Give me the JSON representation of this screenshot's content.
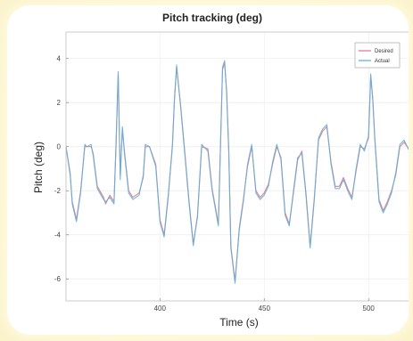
{
  "chart_data": {
    "type": "line",
    "title": "Pitch tracking (deg)",
    "xlabel": "Time (s)",
    "ylabel": "Pitch (deg)",
    "xlim": [
      355,
      520
    ],
    "ylim": [
      -7,
      5.2
    ],
    "xticks": [
      400,
      450,
      500
    ],
    "yticks": [
      -6,
      -4,
      -2,
      0,
      2,
      4
    ],
    "grid": true,
    "legend_position": "top-right",
    "series": [
      {
        "name": "Desired",
        "color": "#e8788a",
        "x": [
          355,
          357,
          358,
          360,
          362,
          364,
          365,
          367,
          368,
          370,
          373,
          374,
          376,
          378,
          379,
          380,
          381,
          382,
          383,
          385,
          387,
          390,
          392,
          393,
          395,
          398,
          400,
          402,
          404,
          406,
          407,
          408,
          410,
          412,
          414,
          416,
          418,
          420,
          423,
          425,
          428,
          430,
          431,
          432,
          433,
          434,
          436,
          438,
          440,
          442,
          444,
          446,
          448,
          450,
          452,
          454,
          456,
          458,
          460,
          462,
          464,
          466,
          468,
          470,
          472,
          474,
          476,
          478,
          480,
          482,
          484,
          486,
          488,
          490,
          492,
          494,
          496,
          498,
          500,
          501,
          502,
          503,
          505,
          507,
          509,
          511,
          513,
          515,
          517,
          520
        ],
        "y": [
          0,
          -1.3,
          -2.5,
          -3.3,
          -2.0,
          0,
          0,
          0,
          -0.3,
          -1.8,
          -2.3,
          -2.6,
          -2.2,
          -2.5,
          0,
          3.3,
          -1.3,
          0.8,
          -0.2,
          -2.0,
          -2.3,
          -2.1,
          -1.4,
          0,
          0,
          -0.8,
          -3.3,
          -4.0,
          -2.2,
          0,
          2.1,
          3.6,
          1.8,
          -0.3,
          -2.5,
          -4.4,
          -3.2,
          0,
          -0.1,
          -1.9,
          -3.5,
          3.5,
          3.8,
          2.5,
          -0.2,
          -4.5,
          -6.1,
          -3.7,
          -2.4,
          -0.9,
          0,
          -2.0,
          -2.3,
          -2.1,
          -1.7,
          -0.8,
          0,
          -0.5,
          -3.0,
          -3.5,
          -2.1,
          -0.6,
          -0.2,
          -2.1,
          -4.5,
          -2.3,
          0.3,
          0.7,
          0.9,
          -0.7,
          -1.8,
          -1.8,
          -1.4,
          -1.9,
          -2.3,
          -1.1,
          0,
          -0.1,
          0.4,
          3.2,
          2.2,
          0.4,
          -2.4,
          -2.9,
          -2.5,
          -2.0,
          -1.3,
          0,
          0.2,
          -0.2
        ]
      },
      {
        "name": "Actual",
        "color": "#5fb0d8",
        "x": [
          355,
          357,
          358,
          360,
          362,
          364,
          365,
          367,
          368,
          370,
          373,
          374,
          376,
          378,
          379,
          380,
          381,
          382,
          383,
          385,
          387,
          390,
          392,
          393,
          395,
          398,
          400,
          402,
          404,
          406,
          407,
          408,
          410,
          412,
          414,
          416,
          418,
          420,
          423,
          425,
          428,
          430,
          431,
          432,
          433,
          434,
          436,
          438,
          440,
          442,
          444,
          446,
          448,
          450,
          452,
          454,
          456,
          458,
          460,
          462,
          464,
          466,
          468,
          470,
          472,
          474,
          476,
          478,
          480,
          482,
          484,
          486,
          488,
          490,
          492,
          494,
          496,
          498,
          500,
          501,
          502,
          503,
          505,
          507,
          509,
          511,
          513,
          515,
          517,
          520
        ],
        "y": [
          0,
          -1.2,
          -2.6,
          -3.4,
          -2.1,
          0.1,
          0,
          0.1,
          -0.4,
          -1.9,
          -2.4,
          -2.5,
          -2.3,
          -2.6,
          0.2,
          3.4,
          -1.5,
          0.9,
          -0.3,
          -2.1,
          -2.4,
          -2.2,
          -1.3,
          0.1,
          0,
          -0.9,
          -3.4,
          -4.1,
          -2.3,
          0.1,
          2.2,
          3.7,
          1.7,
          -0.4,
          -2.6,
          -4.5,
          -3.1,
          0.1,
          -0.2,
          -2.0,
          -3.6,
          3.6,
          3.9,
          2.4,
          -0.3,
          -4.6,
          -6.2,
          -3.8,
          -2.5,
          -0.8,
          0.1,
          -2.1,
          -2.4,
          -2.2,
          -1.8,
          -0.7,
          0.1,
          -0.6,
          -3.1,
          -3.6,
          -2.0,
          -0.5,
          -0.3,
          -2.2,
          -4.6,
          -2.4,
          0.4,
          0.8,
          1.0,
          -0.8,
          -1.9,
          -1.9,
          -1.5,
          -2.0,
          -2.4,
          -1.0,
          0.1,
          -0.2,
          0.5,
          3.3,
          2.1,
          0.3,
          -2.5,
          -3.0,
          -2.6,
          -2.1,
          -1.2,
          0.1,
          0.3,
          -0.3
        ]
      }
    ]
  }
}
